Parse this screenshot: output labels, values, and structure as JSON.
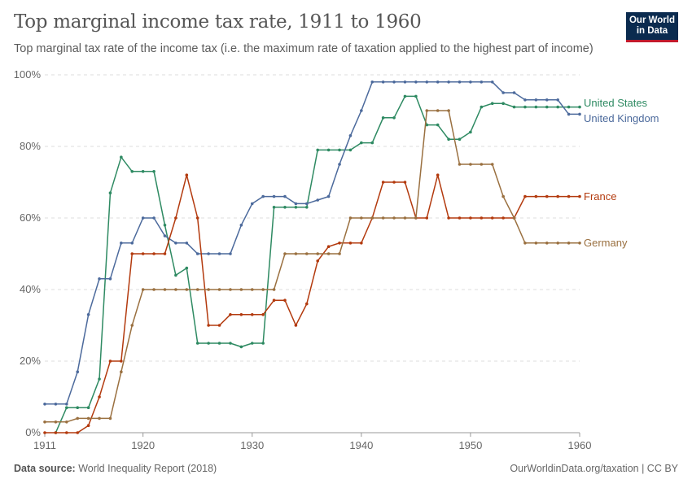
{
  "header": {
    "title": "Top marginal income tax rate, 1911 to 1960",
    "subtitle": "Top marginal tax rate of the income tax (i.e. the maximum rate of taxation applied to the highest part of income)",
    "logo_line1": "Our World",
    "logo_line2": "in Data"
  },
  "footer": {
    "source_label": "Data source:",
    "source": "World Inequality Report (2018)",
    "right": "OurWorldinData.org/taxation | CC BY"
  },
  "chart_data": {
    "type": "line",
    "title": "Top marginal income tax rate, 1911 to 1960",
    "xlabel": "",
    "ylabel": "",
    "xlim": [
      1911,
      1960
    ],
    "ylim": [
      0,
      100
    ],
    "x_ticks": [
      1911,
      1920,
      1930,
      1940,
      1950,
      1960
    ],
    "y_ticks": [
      0,
      20,
      40,
      60,
      80,
      100
    ],
    "y_tick_labels": [
      "0%",
      "20%",
      "40%",
      "60%",
      "80%",
      "100%"
    ],
    "grid": "horizontal dashed",
    "legend": "right (line-end labels)",
    "series": [
      {
        "name": "United States",
        "color": "#2e8a62",
        "start": 1912,
        "values": [
          0,
          7,
          7,
          7,
          15,
          67,
          77,
          73,
          73,
          73,
          58,
          44,
          46,
          25,
          25,
          25,
          25,
          24,
          25,
          25,
          63,
          63,
          63,
          63,
          79,
          79,
          79,
          79,
          81,
          81,
          88,
          88,
          94,
          94,
          86,
          86,
          82,
          82,
          84,
          91,
          92,
          92,
          91,
          91,
          91,
          91,
          91,
          91,
          91
        ]
      },
      {
        "name": "United Kingdom",
        "color": "#4c6a9c",
        "start": 1911,
        "values": [
          8,
          8,
          8,
          17,
          33,
          43,
          43,
          53,
          53,
          60,
          60,
          55,
          53,
          53,
          50,
          50,
          50,
          50,
          58,
          64,
          66,
          66,
          66,
          64,
          64,
          65,
          66,
          75,
          83,
          90,
          98,
          98,
          98,
          98,
          98,
          98,
          98,
          98,
          98,
          98,
          98,
          98,
          95,
          95,
          93,
          93,
          93,
          93,
          89,
          89
        ]
      },
      {
        "name": "France",
        "color": "#b33a0e",
        "start": 1911,
        "values": [
          0,
          0,
          0,
          0,
          2,
          10,
          20,
          20,
          50,
          50,
          50,
          50,
          60,
          72,
          60,
          30,
          30,
          33,
          33,
          33,
          33,
          37,
          37,
          30,
          36,
          48,
          52,
          53,
          53,
          53,
          60,
          70,
          70,
          70,
          60,
          60,
          72,
          60,
          60,
          60,
          60,
          60,
          60,
          60,
          66,
          66,
          66,
          66,
          66,
          66
        ]
      },
      {
        "name": "Germany",
        "color": "#9a7040",
        "start": 1911,
        "values": [
          3,
          3,
          3,
          4,
          4,
          4,
          4,
          17,
          30,
          40,
          40,
          40,
          40,
          40,
          40,
          40,
          40,
          40,
          40,
          40,
          40,
          40,
          50,
          50,
          50,
          50,
          50,
          50,
          60,
          60,
          60,
          60,
          60,
          60,
          60,
          90,
          90,
          90,
          75,
          75,
          75,
          75,
          66,
          60,
          53,
          53,
          53,
          53,
          53,
          53
        ]
      }
    ]
  }
}
